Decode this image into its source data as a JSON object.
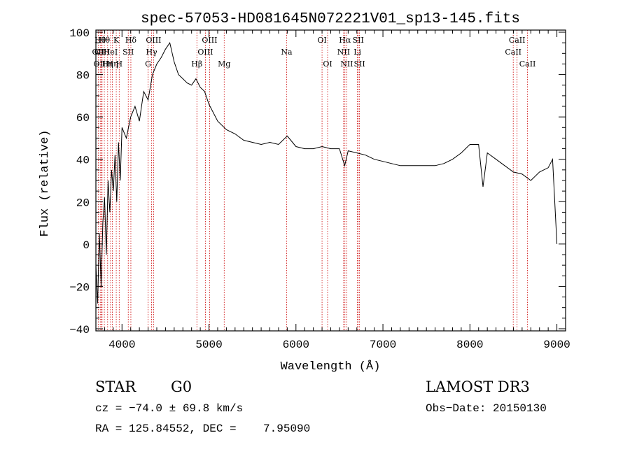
{
  "chart_data": {
    "type": "line",
    "title": "spec-57053-HD081645N072221V01_sp13-145.fits",
    "xlabel": "Wavelength (Å)",
    "ylabel": "Flux (relative)",
    "xlim": [
      3700,
      9100
    ],
    "ylim": [
      -41,
      101
    ],
    "xticks": [
      4000,
      5000,
      6000,
      7000,
      8000,
      9000
    ],
    "yticks": [
      -40,
      -20,
      0,
      20,
      40,
      60,
      80,
      100
    ],
    "x_tick_labels": [
      "4000",
      "5000",
      "6000",
      "7000",
      "8000",
      "9000"
    ],
    "y_tick_labels": [
      "−40",
      "−20",
      "0",
      "20",
      "40",
      "60",
      "80",
      "100"
    ],
    "grid": false,
    "series": [
      {
        "color": "#000000",
        "x": [
          3700,
          3720,
          3740,
          3760,
          3780,
          3800,
          3820,
          3840,
          3860,
          3880,
          3900,
          3920,
          3940,
          3960,
          3980,
          4000,
          4050,
          4100,
          4150,
          4200,
          4250,
          4300,
          4350,
          4400,
          4450,
          4500,
          4550,
          4600,
          4650,
          4700,
          4750,
          4800,
          4850,
          4900,
          4950,
          5000,
          5100,
          5200,
          5300,
          5400,
          5500,
          5600,
          5700,
          5800,
          5900,
          6000,
          6100,
          6200,
          6300,
          6400,
          6500,
          6560,
          6600,
          6700,
          6800,
          6900,
          7000,
          7100,
          7200,
          7300,
          7400,
          7500,
          7600,
          7700,
          7800,
          7900,
          8000,
          8100,
          8150,
          8200,
          8300,
          8400,
          8500,
          8600,
          8700,
          8800,
          8900,
          8950,
          9000
        ],
        "y": [
          -10,
          -28,
          5,
          -20,
          10,
          22,
          -5,
          30,
          15,
          35,
          25,
          42,
          20,
          48,
          30,
          55,
          50,
          60,
          65,
          58,
          72,
          68,
          80,
          85,
          88,
          92,
          95,
          86,
          80,
          78,
          76,
          75,
          78,
          74,
          72,
          66,
          58,
          54,
          52,
          49,
          48,
          47,
          48,
          47,
          51,
          46,
          45,
          45,
          46,
          45,
          45,
          37,
          44,
          43,
          42,
          40,
          39,
          38,
          37,
          37,
          37,
          37,
          37,
          38,
          40,
          43,
          47,
          47,
          27,
          43,
          40,
          37,
          34,
          33,
          30,
          34,
          36,
          40,
          0
        ]
      }
    ],
    "lines": [
      {
        "x": 3727,
        "label": "OII",
        "row": 1
      },
      {
        "x": 3750,
        "label": "Hθ",
        "row": 0
      },
      {
        "x": 3760,
        "label": "OIII",
        "row": 2
      },
      {
        "x": 3771,
        "label": "OIII",
        "row": 1
      },
      {
        "x": 3797,
        "label": "Hθ",
        "row": 0
      },
      {
        "x": 3835,
        "label": "Hη",
        "row": 2
      },
      {
        "x": 3869,
        "label": "HeI",
        "row": 1
      },
      {
        "x": 3890,
        "label": "Hη",
        "row": 2
      },
      {
        "x": 3934,
        "label": "K",
        "row": 0
      },
      {
        "x": 3968,
        "label": "H",
        "row": 2
      },
      {
        "x": 4072,
        "label": "SII",
        "row": 1
      },
      {
        "x": 4102,
        "label": "Hδ",
        "row": 0
      },
      {
        "x": 4300,
        "label": "G",
        "row": 2
      },
      {
        "x": 4340,
        "label": "Hγ",
        "row": 1
      },
      {
        "x": 4363,
        "label": "OIII",
        "row": 0
      },
      {
        "x": 4861,
        "label": "Hβ",
        "row": 2
      },
      {
        "x": 4959,
        "label": "OIII",
        "row": 1
      },
      {
        "x": 5007,
        "label": "OIII",
        "row": 0
      },
      {
        "x": 5175,
        "label": "Mg",
        "row": 2
      },
      {
        "x": 5893,
        "label": "Na",
        "row": 1
      },
      {
        "x": 6300,
        "label": "OI",
        "row": 0
      },
      {
        "x": 6364,
        "label": "OI",
        "row": 2
      },
      {
        "x": 6548,
        "label": "NII",
        "row": 1
      },
      {
        "x": 6563,
        "label": "Hα",
        "row": 0
      },
      {
        "x": 6584,
        "label": "NII",
        "row": 2
      },
      {
        "x": 6707,
        "label": "Li",
        "row": 1
      },
      {
        "x": 6716,
        "label": "SII",
        "row": 0
      },
      {
        "x": 6731,
        "label": "SII",
        "row": 2
      },
      {
        "x": 8498,
        "label": "CaII",
        "row": 1
      },
      {
        "x": 8542,
        "label": "CaII",
        "row": 0
      },
      {
        "x": 8662,
        "label": "CaII",
        "row": 2
      }
    ]
  },
  "footer": {
    "class_label": "STAR",
    "subclass": "G0",
    "survey": "LAMOST DR3",
    "cz": "cz = −74.0 ± 69.8 km/s",
    "obs_date": "Obs−Date: 20150130",
    "radec": "RA = 125.84552, DEC =    7.95090"
  },
  "colors": {
    "spectrum": "#000000",
    "line_marker": "#cc0000",
    "axes": "#000000"
  }
}
